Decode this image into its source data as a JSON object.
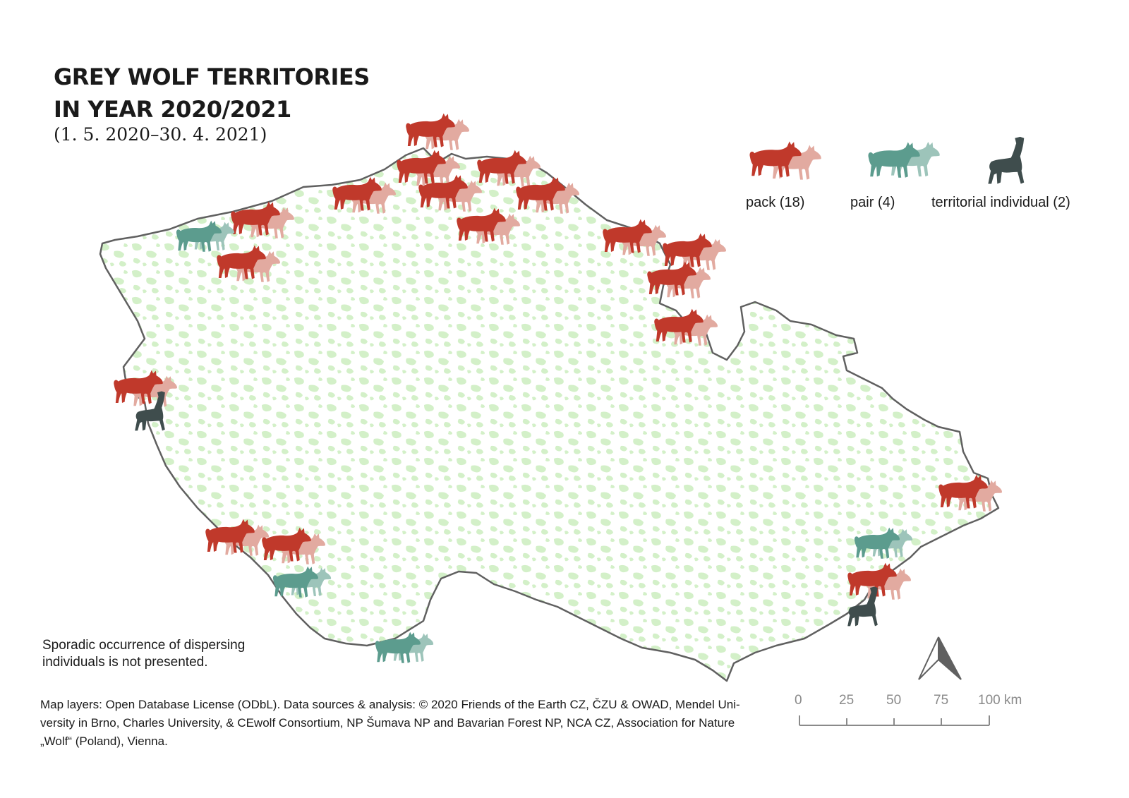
{
  "title": {
    "line1": "GREY WOLF TERRITORIES",
    "line2": "IN YEAR  2020/2021",
    "subtitle": "(1. 5. 2020–30. 4. 2021)"
  },
  "legend": {
    "pack": "pack (18)",
    "pair": "pair (4)",
    "individual": "territorial individual (2)"
  },
  "colors": {
    "pack_front": "#c0392b",
    "pack_back": "#e2aaa0",
    "pair_front": "#5c9c8e",
    "pair_back": "#9dc4ba",
    "individual": "#3f4d4d",
    "forest": "#d3f0c8",
    "border": "#606060"
  },
  "note": {
    "line1": "Sporadic occurrence of dispersing",
    "line2": "individuals is not presented."
  },
  "credits": {
    "line1": "Map layers: Open Database License (ODbL). Data sources & analysis: © 2020 Friends of the Earth CZ, ČZU & OWAD, Mendel Uni-",
    "line2": "versity in Brno, Charles University, & CEwolf Consortium, NP Šumava NP and Bavarian Forest NP, NCA CZ, Association for Nature",
    "line3": "„Wolf“  (Poland), Vienna."
  },
  "scale_bar": {
    "ticks": [
      "0",
      "25",
      "50",
      "75",
      "100 km"
    ]
  },
  "territory_counts": {
    "pack": 18,
    "pair": 4,
    "territorial_individual": 2
  }
}
